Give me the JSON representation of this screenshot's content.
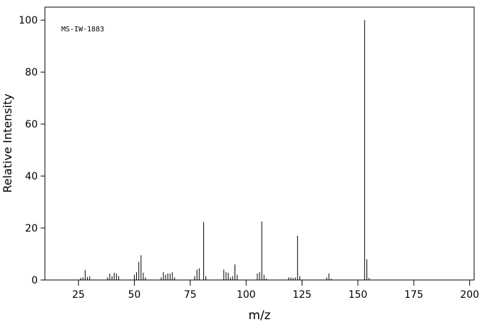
{
  "chart_data": {
    "type": "spectrum",
    "annotation": "MS-IW-1883",
    "xlabel": "m/z",
    "ylabel": "Relative Intensity",
    "x": [
      26,
      27,
      28,
      29,
      30,
      38,
      39,
      40,
      41,
      42,
      43,
      50,
      51,
      52,
      53,
      54,
      55,
      62,
      63,
      64,
      65,
      66,
      67,
      68,
      77,
      78,
      79,
      81,
      82,
      90,
      91,
      92,
      93,
      94,
      95,
      96,
      105,
      106,
      107,
      108,
      109,
      119,
      120,
      121,
      122,
      123,
      124,
      136,
      137,
      138,
      153,
      154,
      155
    ],
    "values": [
      0.8,
      1,
      3.8,
      1.2,
      1.5,
      1,
      2.5,
      1.5,
      2.8,
      2.5,
      1.5,
      2,
      3,
      7,
      9.5,
      2.8,
      1,
      1,
      3,
      2,
      2.5,
      2.5,
      3,
      1,
      1.5,
      4,
      4.5,
      22.3,
      1.5,
      4,
      3,
      2.8,
      1,
      1.5,
      6,
      2,
      2.5,
      3,
      22.5,
      2,
      0.5,
      1,
      1,
      0.8,
      1,
      17,
      1.5,
      1,
      2.5,
      0.5,
      100,
      8,
      0.8
    ],
    "color": "#000000",
    "xlim": [
      10,
      202
    ],
    "ylim": [
      0,
      105
    ],
    "xticks": [
      25,
      50,
      75,
      100,
      125,
      150,
      175,
      200
    ],
    "yticks": [
      0,
      20,
      40,
      60,
      80,
      100
    ]
  }
}
